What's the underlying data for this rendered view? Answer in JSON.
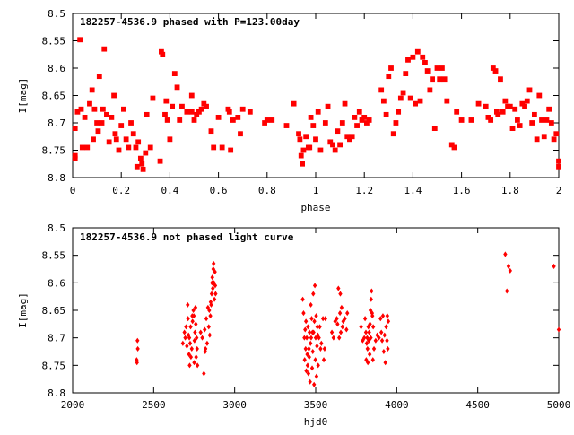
{
  "chart_data": [
    {
      "type": "scatter",
      "title": "182257-4536.9 phased with P=123.00day",
      "xlabel": "phase",
      "ylabel": "I[mag]",
      "xlim": [
        0,
        2
      ],
      "ylim": [
        8.5,
        8.8
      ],
      "y_inverted": true,
      "grid": false,
      "marker": "star",
      "color": "#ff0000",
      "x_ticks": [
        "0",
        "0.2",
        "0.4",
        "0.6",
        "0.8",
        "1",
        "1.2",
        "1.4",
        "1.6",
        "1.8",
        "2"
      ],
      "y_ticks": [
        "8.5",
        "8.55",
        "8.6",
        "8.65",
        "8.7",
        "8.75",
        "8.8"
      ],
      "points": [
        [
          0.01,
          8.71
        ],
        [
          0.01,
          8.76
        ],
        [
          0.01,
          8.765
        ],
        [
          0.02,
          8.68
        ],
        [
          0.03,
          8.548
        ],
        [
          0.035,
          8.675
        ],
        [
          0.04,
          8.745
        ],
        [
          0.05,
          8.69
        ],
        [
          0.06,
          8.745
        ],
        [
          0.07,
          8.665
        ],
        [
          0.08,
          8.64
        ],
        [
          0.085,
          8.73
        ],
        [
          0.09,
          8.675
        ],
        [
          0.1,
          8.7
        ],
        [
          0.105,
          8.715
        ],
        [
          0.11,
          8.615
        ],
        [
          0.12,
          8.7
        ],
        [
          0.125,
          8.675
        ],
        [
          0.13,
          8.565
        ],
        [
          0.14,
          8.685
        ],
        [
          0.15,
          8.735
        ],
        [
          0.16,
          8.69
        ],
        [
          0.17,
          8.65
        ],
        [
          0.175,
          8.72
        ],
        [
          0.18,
          8.73
        ],
        [
          0.19,
          8.75
        ],
        [
          0.2,
          8.705
        ],
        [
          0.21,
          8.675
        ],
        [
          0.22,
          8.73
        ],
        [
          0.23,
          8.745
        ],
        [
          0.24,
          8.7
        ],
        [
          0.25,
          8.72
        ],
        [
          0.26,
          8.745
        ],
        [
          0.265,
          8.78
        ],
        [
          0.27,
          8.735
        ],
        [
          0.28,
          8.765
        ],
        [
          0.285,
          8.775
        ],
        [
          0.29,
          8.785
        ],
        [
          0.3,
          8.755
        ],
        [
          0.305,
          8.685
        ],
        [
          0.32,
          8.745
        ],
        [
          0.33,
          8.655
        ],
        [
          0.36,
          8.77
        ],
        [
          0.365,
          8.57
        ],
        [
          0.37,
          8.575
        ],
        [
          0.38,
          8.685
        ],
        [
          0.385,
          8.66
        ],
        [
          0.39,
          8.695
        ],
        [
          0.4,
          8.73
        ],
        [
          0.41,
          8.67
        ],
        [
          0.42,
          8.61
        ],
        [
          0.43,
          8.635
        ],
        [
          0.44,
          8.695
        ],
        [
          0.45,
          8.67
        ],
        [
          0.47,
          8.68
        ],
        [
          0.49,
          8.65
        ],
        [
          0.49,
          8.68
        ],
        [
          0.5,
          8.695
        ],
        [
          0.51,
          8.685
        ],
        [
          0.52,
          8.68
        ],
        [
          0.53,
          8.675
        ],
        [
          0.54,
          8.665
        ],
        [
          0.55,
          8.67
        ],
        [
          0.57,
          8.715
        ],
        [
          0.58,
          8.745
        ],
        [
          0.6,
          8.69
        ],
        [
          0.615,
          8.745
        ],
        [
          0.64,
          8.675
        ],
        [
          0.645,
          8.68
        ],
        [
          0.65,
          8.75
        ],
        [
          0.66,
          8.695
        ],
        [
          0.68,
          8.69
        ],
        [
          0.69,
          8.72
        ],
        [
          0.7,
          8.675
        ],
        [
          0.73,
          8.68
        ],
        [
          0.79,
          8.7
        ],
        [
          0.8,
          8.695
        ],
        [
          0.82,
          8.695
        ],
        [
          0.88,
          8.705
        ],
        [
          0.91,
          8.665
        ],
        [
          0.93,
          8.72
        ],
        [
          0.935,
          8.73
        ],
        [
          0.94,
          8.76
        ],
        [
          0.945,
          8.775
        ],
        [
          0.95,
          8.75
        ],
        [
          0.96,
          8.725
        ],
        [
          0.97,
          8.745
        ],
        [
          0.975,
          8.745
        ],
        [
          0.98,
          8.69
        ],
        [
          0.99,
          8.705
        ],
        [
          1.0,
          8.73
        ],
        [
          1.01,
          8.68
        ],
        [
          1.02,
          8.75
        ],
        [
          1.04,
          8.7
        ],
        [
          1.05,
          8.67
        ],
        [
          1.06,
          8.735
        ],
        [
          1.07,
          8.74
        ],
        [
          1.08,
          8.75
        ],
        [
          1.09,
          8.715
        ],
        [
          1.1,
          8.74
        ],
        [
          1.11,
          8.7
        ],
        [
          1.12,
          8.665
        ],
        [
          1.13,
          8.725
        ],
        [
          1.14,
          8.73
        ],
        [
          1.15,
          8.725
        ],
        [
          1.16,
          8.69
        ],
        [
          1.17,
          8.705
        ],
        [
          1.18,
          8.68
        ],
        [
          1.19,
          8.695
        ],
        [
          1.2,
          8.69
        ],
        [
          1.21,
          8.7
        ],
        [
          1.22,
          8.695
        ],
        [
          1.27,
          8.64
        ],
        [
          1.28,
          8.66
        ],
        [
          1.29,
          8.685
        ],
        [
          1.3,
          8.615
        ],
        [
          1.31,
          8.6
        ],
        [
          1.32,
          8.72
        ],
        [
          1.33,
          8.7
        ],
        [
          1.34,
          8.68
        ],
        [
          1.35,
          8.655
        ],
        [
          1.36,
          8.645
        ],
        [
          1.37,
          8.61
        ],
        [
          1.38,
          8.585
        ],
        [
          1.39,
          8.655
        ],
        [
          1.4,
          8.58
        ],
        [
          1.41,
          8.665
        ],
        [
          1.42,
          8.57
        ],
        [
          1.43,
          8.66
        ],
        [
          1.44,
          8.58
        ],
        [
          1.45,
          8.59
        ],
        [
          1.46,
          8.605
        ],
        [
          1.47,
          8.64
        ],
        [
          1.48,
          8.62
        ],
        [
          1.49,
          8.71
        ],
        [
          1.5,
          8.6
        ],
        [
          1.51,
          8.62
        ],
        [
          1.52,
          8.6
        ],
        [
          1.53,
          8.62
        ],
        [
          1.54,
          8.66
        ],
        [
          1.56,
          8.74
        ],
        [
          1.57,
          8.745
        ],
        [
          1.58,
          8.68
        ],
        [
          1.6,
          8.695
        ],
        [
          1.64,
          8.695
        ],
        [
          1.67,
          8.665
        ],
        [
          1.7,
          8.67
        ],
        [
          1.71,
          8.69
        ],
        [
          1.72,
          8.695
        ],
        [
          1.73,
          8.6
        ],
        [
          1.74,
          8.605
        ],
        [
          1.745,
          8.68
        ],
        [
          1.75,
          8.685
        ],
        [
          1.76,
          8.62
        ],
        [
          1.77,
          8.68
        ],
        [
          1.78,
          8.66
        ],
        [
          1.79,
          8.67
        ],
        [
          1.8,
          8.67
        ],
        [
          1.81,
          8.71
        ],
        [
          1.82,
          8.675
        ],
        [
          1.83,
          8.695
        ],
        [
          1.84,
          8.705
        ],
        [
          1.85,
          8.665
        ],
        [
          1.86,
          8.67
        ],
        [
          1.87,
          8.66
        ],
        [
          1.88,
          8.64
        ],
        [
          1.89,
          8.7
        ],
        [
          1.9,
          8.685
        ],
        [
          1.91,
          8.73
        ],
        [
          1.92,
          8.65
        ],
        [
          1.93,
          8.695
        ],
        [
          1.94,
          8.725
        ],
        [
          1.95,
          8.695
        ],
        [
          1.96,
          8.675
        ],
        [
          1.97,
          8.7
        ],
        [
          1.98,
          8.73
        ],
        [
          1.99,
          8.72
        ],
        [
          2.0,
          8.77
        ],
        [
          2.0,
          8.78
        ]
      ]
    },
    {
      "type": "scatter",
      "title": "182257-4536.9 not phased light curve",
      "xlabel": "hjd0",
      "ylabel": "I[mag]",
      "xlim": [
        2000,
        5000
      ],
      "ylim": [
        8.5,
        8.8
      ],
      "y_inverted": true,
      "grid": false,
      "marker": "diamond",
      "color": "#ff0000",
      "x_ticks": [
        "2000",
        "2500",
        "3000",
        "3500",
        "4000",
        "4500",
        "5000"
      ],
      "y_ticks": [
        "8.5",
        "8.55",
        "8.6",
        "8.65",
        "8.7",
        "8.75",
        "8.8"
      ],
      "points": [
        [
          2395,
          8.74
        ],
        [
          2397,
          8.745
        ],
        [
          2400,
          8.705
        ],
        [
          2402,
          8.72
        ],
        [
          2680,
          8.71
        ],
        [
          2690,
          8.69
        ],
        [
          2695,
          8.7
        ],
        [
          2700,
          8.68
        ],
        [
          2705,
          8.715
        ],
        [
          2710,
          8.64
        ],
        [
          2712,
          8.665
        ],
        [
          2715,
          8.695
        ],
        [
          2718,
          8.73
        ],
        [
          2720,
          8.7
        ],
        [
          2722,
          8.75
        ],
        [
          2725,
          8.71
        ],
        [
          2728,
          8.68
        ],
        [
          2730,
          8.735
        ],
        [
          2735,
          8.72
        ],
        [
          2738,
          8.66
        ],
        [
          2740,
          8.67
        ],
        [
          2745,
          8.65
        ],
        [
          2748,
          8.66
        ],
        [
          2750,
          8.745
        ],
        [
          2752,
          8.705
        ],
        [
          2755,
          8.69
        ],
        [
          2758,
          8.645
        ],
        [
          2760,
          8.675
        ],
        [
          2762,
          8.735
        ],
        [
          2765,
          8.7
        ],
        [
          2768,
          8.72
        ],
        [
          2770,
          8.75
        ],
        [
          2790,
          8.69
        ],
        [
          2800,
          8.7
        ],
        [
          2810,
          8.765
        ],
        [
          2815,
          8.685
        ],
        [
          2818,
          8.725
        ],
        [
          2820,
          8.72
        ],
        [
          2825,
          8.665
        ],
        [
          2830,
          8.71
        ],
        [
          2835,
          8.645
        ],
        [
          2840,
          8.68
        ],
        [
          2843,
          8.65
        ],
        [
          2846,
          8.695
        ],
        [
          2850,
          8.66
        ],
        [
          2852,
          8.635
        ],
        [
          2855,
          8.64
        ],
        [
          2858,
          8.62
        ],
        [
          2860,
          8.6
        ],
        [
          2862,
          8.59
        ],
        [
          2865,
          8.61
        ],
        [
          2868,
          8.575
        ],
        [
          2870,
          8.565
        ],
        [
          2872,
          8.6
        ],
        [
          2875,
          8.63
        ],
        [
          2878,
          8.58
        ],
        [
          2880,
          8.605
        ],
        [
          2882,
          8.62
        ],
        [
          3420,
          8.63
        ],
        [
          3425,
          8.655
        ],
        [
          3430,
          8.7
        ],
        [
          3432,
          8.74
        ],
        [
          3435,
          8.685
        ],
        [
          3438,
          8.72
        ],
        [
          3440,
          8.67
        ],
        [
          3442,
          8.76
        ],
        [
          3445,
          8.7
        ],
        [
          3448,
          8.73
        ],
        [
          3450,
          8.75
        ],
        [
          3452,
          8.68
        ],
        [
          3455,
          8.765
        ],
        [
          3458,
          8.72
        ],
        [
          3460,
          8.735
        ],
        [
          3462,
          8.69
        ],
        [
          3465,
          8.78
        ],
        [
          3468,
          8.71
        ],
        [
          3470,
          8.64
        ],
        [
          3472,
          8.7
        ],
        [
          3475,
          8.665
        ],
        [
          3478,
          8.755
        ],
        [
          3480,
          8.69
        ],
        [
          3482,
          8.725
        ],
        [
          3485,
          8.62
        ],
        [
          3487,
          8.69
        ],
        [
          3490,
          8.785
        ],
        [
          3492,
          8.67
        ],
        [
          3495,
          8.605
        ],
        [
          3498,
          8.74
        ],
        [
          3500,
          8.7
        ],
        [
          3503,
          8.66
        ],
        [
          3505,
          8.77
        ],
        [
          3508,
          8.715
        ],
        [
          3510,
          8.68
        ],
        [
          3513,
          8.695
        ],
        [
          3515,
          8.75
        ],
        [
          3520,
          8.7
        ],
        [
          3525,
          8.68
        ],
        [
          3530,
          8.72
        ],
        [
          3535,
          8.71
        ],
        [
          3545,
          8.665
        ],
        [
          3550,
          8.74
        ],
        [
          3555,
          8.72
        ],
        [
          3560,
          8.665
        ],
        [
          3600,
          8.69
        ],
        [
          3610,
          8.7
        ],
        [
          3620,
          8.67
        ],
        [
          3630,
          8.665
        ],
        [
          3635,
          8.675
        ],
        [
          3640,
          8.61
        ],
        [
          3645,
          8.7
        ],
        [
          3650,
          8.655
        ],
        [
          3652,
          8.62
        ],
        [
          3655,
          8.69
        ],
        [
          3660,
          8.645
        ],
        [
          3665,
          8.68
        ],
        [
          3670,
          8.67
        ],
        [
          3680,
          8.665
        ],
        [
          3690,
          8.685
        ],
        [
          3695,
          8.655
        ],
        [
          3780,
          8.68
        ],
        [
          3790,
          8.705
        ],
        [
          3800,
          8.7
        ],
        [
          3805,
          8.665
        ],
        [
          3810,
          8.69
        ],
        [
          3812,
          8.74
        ],
        [
          3815,
          8.71
        ],
        [
          3818,
          8.7
        ],
        [
          3820,
          8.72
        ],
        [
          3822,
          8.745
        ],
        [
          3825,
          8.68
        ],
        [
          3828,
          8.705
        ],
        [
          3830,
          8.69
        ],
        [
          3833,
          8.73
        ],
        [
          3835,
          8.675
        ],
        [
          3838,
          8.65
        ],
        [
          3840,
          8.7
        ],
        [
          3842,
          8.63
        ],
        [
          3845,
          8.615
        ],
        [
          3848,
          8.655
        ],
        [
          3850,
          8.66
        ],
        [
          3853,
          8.74
        ],
        [
          3855,
          8.68
        ],
        [
          3860,
          8.72
        ],
        [
          3870,
          8.705
        ],
        [
          3880,
          8.695
        ],
        [
          3890,
          8.7
        ],
        [
          3900,
          8.665
        ],
        [
          3905,
          8.69
        ],
        [
          3910,
          8.705
        ],
        [
          3915,
          8.66
        ],
        [
          3920,
          8.725
        ],
        [
          3925,
          8.695
        ],
        [
          3930,
          8.745
        ],
        [
          3935,
          8.68
        ],
        [
          3940,
          8.705
        ],
        [
          3942,
          8.66
        ],
        [
          3945,
          8.72
        ],
        [
          3948,
          8.67
        ],
        [
          4670,
          8.548
        ],
        [
          4680,
          8.615
        ],
        [
          4690,
          8.57
        ],
        [
          4700,
          8.578
        ],
        [
          4970,
          8.57
        ],
        [
          5000,
          8.685
        ]
      ]
    }
  ]
}
